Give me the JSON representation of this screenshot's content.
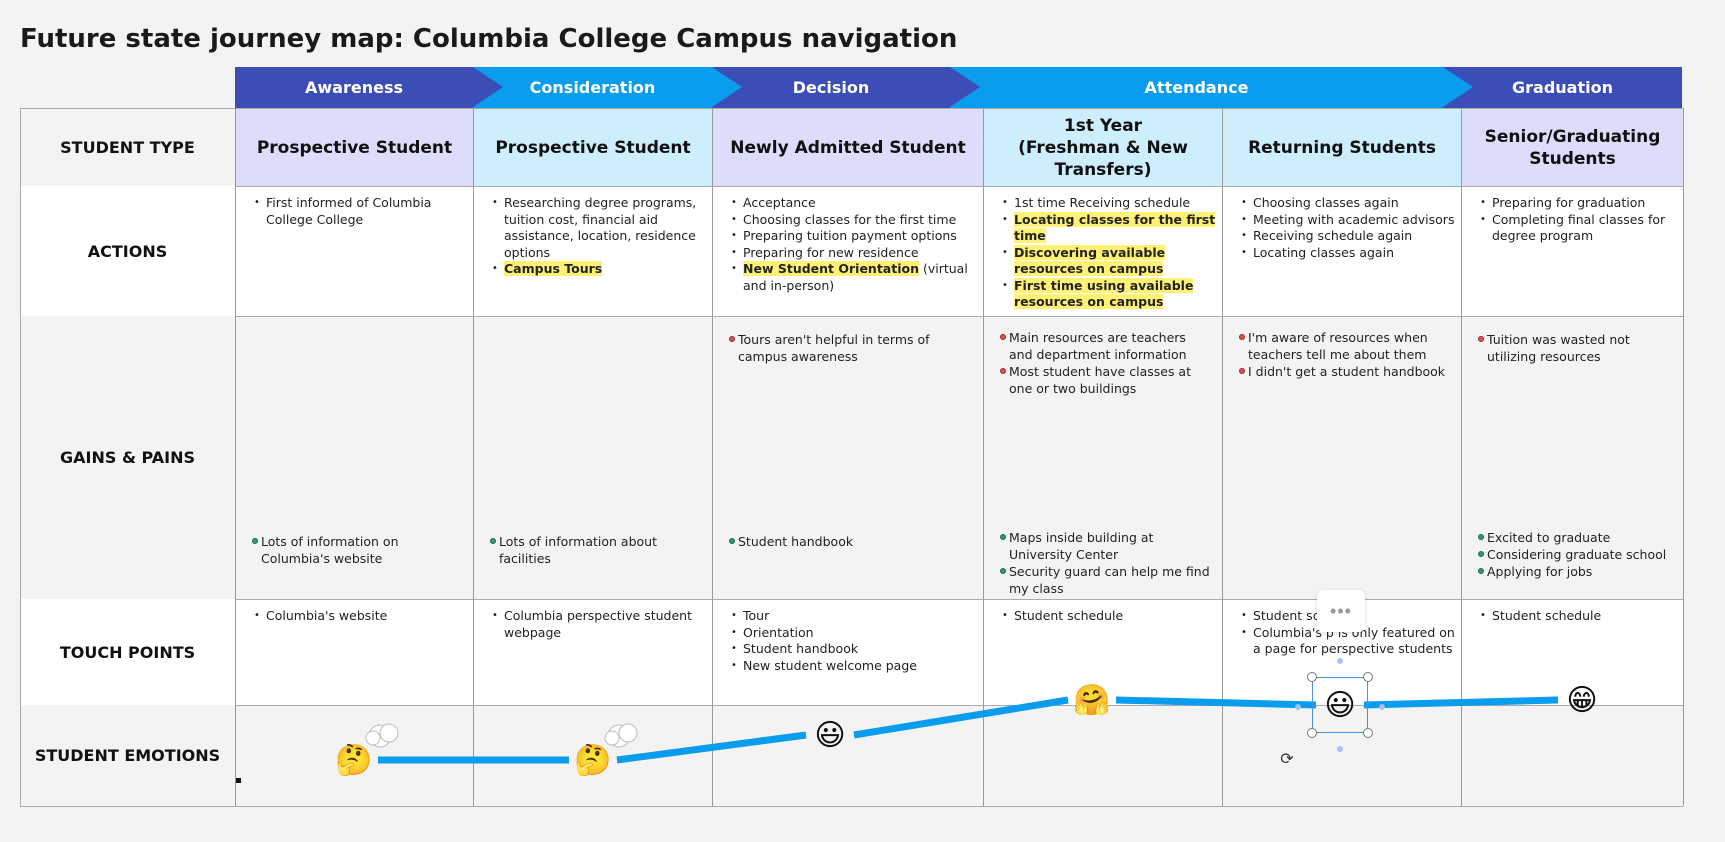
{
  "title": "Future state journey map: Columbia College Campus navigation",
  "phases": [
    {
      "label": "Awareness"
    },
    {
      "label": "Consideration"
    },
    {
      "label": "Decision"
    },
    {
      "label": "Attendance"
    },
    {
      "label": "Graduation"
    }
  ],
  "row_labels": {
    "student_type": "STUDENT TYPE",
    "actions": "ACTIONS",
    "gains_pains": "GAINS & PAINS",
    "touch_points": "TOUCH POINTS",
    "student_emotions": "STUDENT EMOTIONS"
  },
  "student_types": [
    "Prospective Student",
    "Prospective Student",
    "Newly Admitted Student",
    "1st Year\n(Freshman & New Transfers)",
    "Returning Students",
    "Senior/Graduating Students"
  ],
  "actions": [
    [
      {
        "text": "First informed of Columbia College College"
      }
    ],
    [
      {
        "text": "Researching degree programs, tuition cost, financial aid assistance, location, residence options"
      },
      {
        "text": "Campus Tours",
        "hl": true
      }
    ],
    [
      {
        "text": "Acceptance"
      },
      {
        "text": "Choosing classes for the first time"
      },
      {
        "text": "Preparing tuition payment options"
      },
      {
        "text": "Preparing for new residence"
      },
      {
        "text": "New Student Orientation",
        "hl": true,
        "suffix": " (virtual and in-person)"
      }
    ],
    [
      {
        "text": "1st time Receiving schedule"
      },
      {
        "text": "Locating classes for the first time",
        "hl": true
      },
      {
        "text": "Discovering available resources on campus",
        "hl": true
      },
      {
        "text": "First time using available resources on campus",
        "hl": true
      }
    ],
    [
      {
        "text": "Choosing classes again"
      },
      {
        "text": "Meeting with academic advisors"
      },
      {
        "text": "Receiving schedule again"
      },
      {
        "text": "Locating classes again"
      }
    ],
    [
      {
        "text": "Preparing for graduation"
      },
      {
        "text": "Completing final classes for degree program"
      }
    ]
  ],
  "pains": [
    [],
    [],
    [
      "Tours aren't helpful in terms of campus awareness"
    ],
    [
      "Main resources are teachers and department information",
      "Most student have classes at one or two buildings"
    ],
    [
      "I'm aware of resources when teachers tell me about them",
      "I didn't get a student handbook"
    ],
    [
      "Tuition was wasted not utilizing resources"
    ]
  ],
  "gains": [
    [
      "Lots of information on Columbia's website"
    ],
    [
      "Lots of information about facilities"
    ],
    [
      "Student handbook"
    ],
    [
      "Maps inside building at University Center",
      "Security guard can help me find my class"
    ],
    [],
    [
      "Excited to graduate",
      "Considering graduate school",
      "Applying for jobs"
    ]
  ],
  "touch_points": [
    [
      "Columbia's website"
    ],
    [
      "Columbia perspective student webpage"
    ],
    [
      "Tour",
      "Orientation",
      "Student handbook",
      "New student welcome page"
    ],
    [
      "Student schedule"
    ],
    [
      "Student sch",
      "Columbia's p is only featured on a page for perspective students"
    ],
    [
      "Student schedule"
    ]
  ],
  "emotions": [
    {
      "icon": "thinking-face-icon",
      "glyph": "🤔",
      "level": 0.2
    },
    {
      "icon": "thinking-face-icon",
      "glyph": "🤔",
      "level": 0.2
    },
    {
      "icon": "smiley-face-icon",
      "glyph": "😃",
      "level": 0.45
    },
    {
      "icon": "hugging-face-icon",
      "glyph": "🤗",
      "level": 0.8
    },
    {
      "icon": "smiley-face-icon",
      "glyph": "😃",
      "level": 0.75
    },
    {
      "icon": "grinning-face-icon",
      "glyph": "😁",
      "level": 0.8
    }
  ],
  "colors": {
    "phase_dark": "#3d4db7",
    "phase_light": "#0a9ced",
    "lavender": "#dcdcfb",
    "sky": "#cdeefc",
    "highlight": "#fff176",
    "emotion_line": "#0a9ced"
  },
  "toolbar": {
    "more_glyph": "•••"
  }
}
